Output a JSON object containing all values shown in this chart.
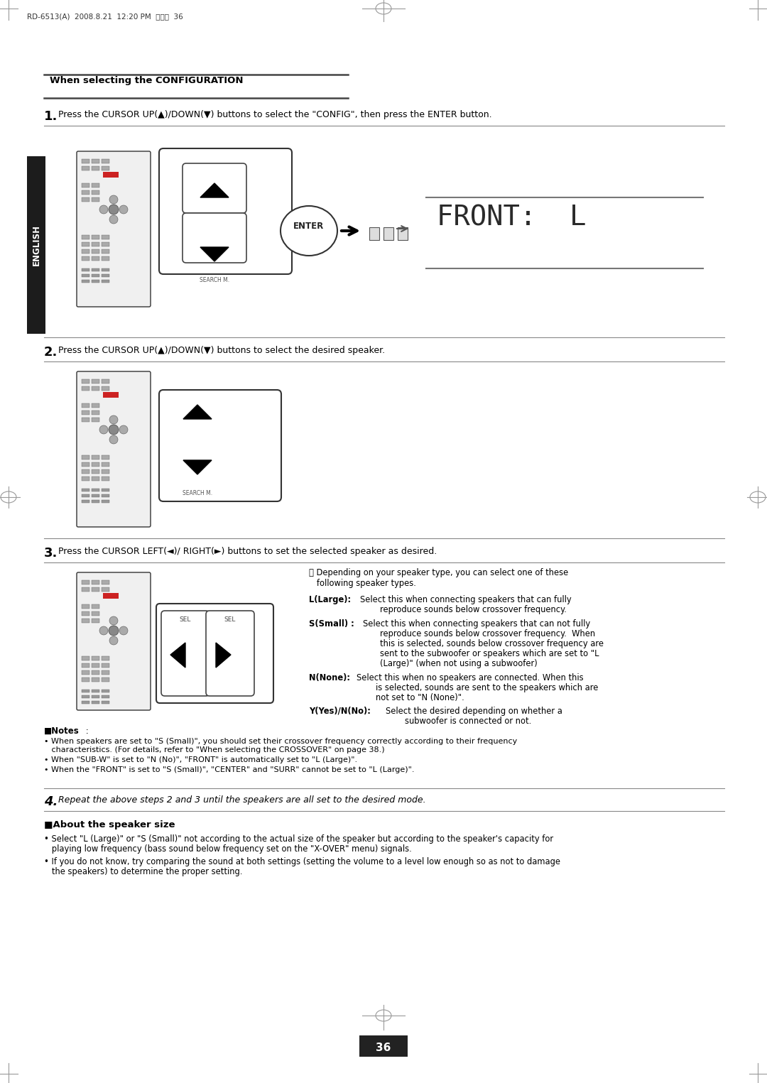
{
  "page_header": "RD-6513(A)  2008.8.21  12:20 PM  페이지  36",
  "section_title": "When selecting the CONFIGURATION",
  "step1_text": "Press the CURSOR UP(▲)/DOWN(▼) buttons to select the \"CONFIG\", then press the ENTER button.",
  "step2_text": "Press the CURSOR UP(▲)/DOWN(▼) buttons to select the desired speaker.",
  "step3_text": "Press the CURSOR LEFT(◄)/ RIGHT(►) buttons to set the selected speaker as desired.",
  "step4_text": "Repeat the above steps 2 and 3 until the speakers are all set to the desired mode.",
  "display_text": "FRONT:  L",
  "notes_header": "■Notes",
  "note1": "• When speakers are set to \"S (Small)\", you should set their crossover frequency correctly according to their frequency",
  "note1b": "   characteristics. (For details, refer to \"When selecting the CROSSOVER\" on page 38.)",
  "note2": "• When \"SUB-W\" is set to \"N (No)\", \"FRONT\" is automatically set to \"L (Large)\".",
  "note3": "• When the \"FRONT\" is set to \"S (Small)\", \"CENTER\" and \"SURR\" cannot be set to \"L (Large)\".",
  "about_header": "■About the speaker size",
  "about1": "• Select \"L (Large)\" or \"S (Small)\" not according to the actual size of the speaker but according to the speaker's capacity for",
  "about1b": "   playing low frequency (bass sound below frequency set on the \"X-OVER\" menu) signals.",
  "about2": "• If you do not know, try comparing the sound at both settings (setting the volume to a level low enough so as not to damage",
  "about2b": "   the speakers) to determine the proper setting.",
  "page_num": "36",
  "english_label": "ENGLISH",
  "bg_color": "#ffffff",
  "text_color": "#000000"
}
